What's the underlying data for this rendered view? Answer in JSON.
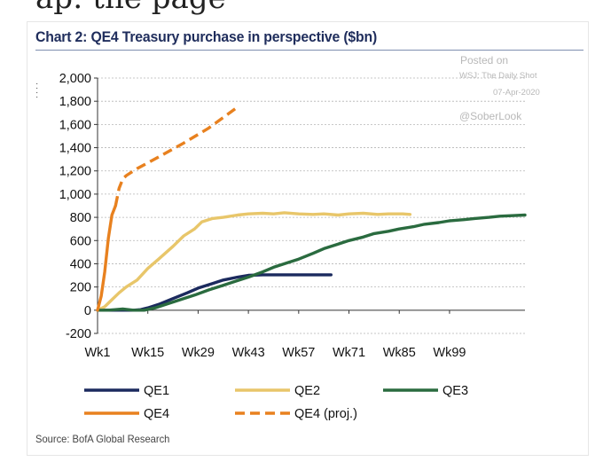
{
  "header_fragment": "ap: the page",
  "chart_data": {
    "type": "line",
    "title": "Chart 2: QE4 Treasury purchase in perspective ($bn)",
    "source": "Source: BofA Global Research",
    "watermark": {
      "posted": "Posted on",
      "outlet": "WSJ: The Daily Shot",
      "date": "07-Apr-2020",
      "handle": "@SoberLook"
    },
    "ylim": [
      -200,
      2000
    ],
    "yticks": [
      -200,
      0,
      200,
      400,
      600,
      800,
      1000,
      1200,
      1400,
      1600,
      1800,
      2000
    ],
    "ytick_labels": [
      "-200",
      "0",
      "200",
      "400",
      "600",
      "800",
      "1,000",
      "1,200",
      "1,400",
      "1,600",
      "1,800",
      "2,000"
    ],
    "xlim": [
      1,
      120
    ],
    "xticks": [
      1,
      15,
      29,
      43,
      57,
      71,
      85,
      99
    ],
    "xtick_labels": [
      "Wk1",
      "Wk15",
      "Wk29",
      "Wk43",
      "Wk57",
      "Wk71",
      "Wk85",
      "Wk99"
    ],
    "grid": true,
    "legend_position": "bottom",
    "series": [
      {
        "name": "QE1",
        "color": "#1b2a5e",
        "dash": false,
        "x": [
          1,
          5,
          8,
          11,
          13,
          15,
          18,
          22,
          26,
          29,
          33,
          36,
          40,
          43,
          47,
          52,
          57,
          60,
          63,
          66
        ],
        "values": [
          0,
          0,
          0,
          0,
          5,
          20,
          50,
          100,
          150,
          190,
          230,
          260,
          285,
          300,
          305,
          305,
          305,
          305,
          305,
          305
        ]
      },
      {
        "name": "QE2",
        "color": "#e8c66a",
        "dash": false,
        "x": [
          1,
          3,
          5,
          7,
          9,
          12,
          15,
          18,
          22,
          25,
          28,
          30,
          33,
          36,
          40,
          43,
          47,
          50,
          53,
          57,
          61,
          64,
          68,
          71,
          75,
          79,
          82,
          86,
          88
        ],
        "values": [
          0,
          30,
          90,
          150,
          200,
          260,
          360,
          440,
          550,
          640,
          700,
          760,
          790,
          800,
          820,
          830,
          835,
          830,
          840,
          830,
          825,
          830,
          820,
          830,
          835,
          825,
          830,
          830,
          825
        ]
      },
      {
        "name": "QE3",
        "color": "#2a6b3f",
        "dash": false,
        "x": [
          1,
          4,
          8,
          11,
          14,
          17,
          20,
          24,
          28,
          32,
          36,
          40,
          43,
          47,
          50,
          54,
          57,
          61,
          64,
          68,
          71,
          75,
          78,
          82,
          85,
          89,
          92,
          96,
          99,
          103,
          106,
          110,
          113,
          117,
          120
        ],
        "values": [
          0,
          0,
          10,
          0,
          0,
          20,
          50,
          90,
          130,
          175,
          215,
          255,
          285,
          330,
          370,
          410,
          440,
          490,
          530,
          570,
          600,
          630,
          660,
          680,
          700,
          720,
          740,
          755,
          770,
          780,
          790,
          800,
          810,
          815,
          820
        ]
      },
      {
        "name": "QE4",
        "color": "#e8811f",
        "dash": false,
        "x": [
          1,
          2,
          3,
          4,
          5,
          6
        ],
        "values": [
          0,
          120,
          330,
          620,
          820,
          900
        ]
      },
      {
        "name": "QE4 (proj.)",
        "color": "#e8811f",
        "dash": true,
        "x": [
          6,
          7,
          8,
          9,
          12,
          18,
          25,
          32,
          40
        ],
        "values": [
          900,
          1050,
          1130,
          1160,
          1220,
          1320,
          1440,
          1570,
          1750
        ]
      }
    ]
  }
}
